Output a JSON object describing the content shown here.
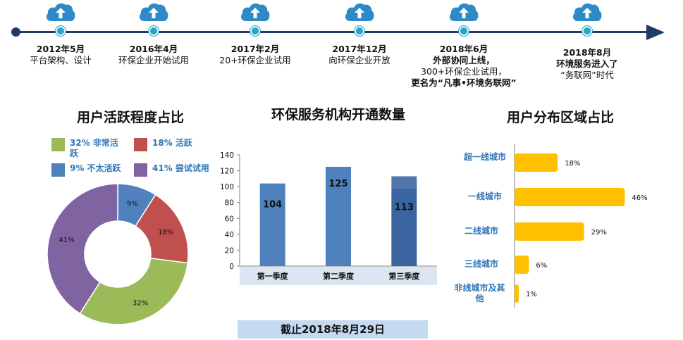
{
  "timeline": {
    "milestones": [
      {
        "date": "2012年5月",
        "desc": [
          "平台架构、设计"
        ]
      },
      {
        "date": "2016年4月",
        "desc": [
          "环保企业开始试用"
        ]
      },
      {
        "date": "2017年2月",
        "desc": [
          "20+环保企业试用"
        ]
      },
      {
        "date": "2017年12月",
        "desc": [
          "向环保企业开放"
        ]
      },
      {
        "date": "2018年6月",
        "desc": [
          "外部协同上线，",
          "300+环保企业试用，",
          "更名为“凡事•环境务联网”"
        ]
      },
      {
        "date": "2018年8月",
        "desc": [
          "环境服务进入了",
          "“务联网”时代"
        ]
      }
    ],
    "icon": "cloud-upload-icon",
    "colors": {
      "line": "#1f3b66",
      "node": "#29a3c6",
      "cloud": "#2e8ac7"
    }
  },
  "sections": {
    "activity_title": "用户活跃程度占比",
    "institutions_title": "环保服务机构开通数量",
    "region_title": "用户分布区域占比"
  },
  "cutoff_label": "截止2018年8月29日",
  "chart_data": [
    {
      "type": "pie",
      "donut": true,
      "title": "用户活跃程度占比",
      "slices": [
        {
          "legend": "9%  不太活跃",
          "slice_label": "9%",
          "value": 9,
          "color": "#4f81bd"
        },
        {
          "legend": "18% 活跃",
          "slice_label": "18%",
          "value": 18,
          "color": "#c0504d"
        },
        {
          "legend": "32% 非常活跃",
          "slice_label": "32%",
          "value": 32,
          "color": "#9bbb59"
        },
        {
          "legend": "41% 尝试试用",
          "slice_label": "41%",
          "value": 41,
          "color": "#8064a2"
        }
      ],
      "legend_order": [
        2,
        1,
        0,
        3
      ]
    },
    {
      "type": "bar",
      "title": "环保服务机构开通数量",
      "categories": [
        "第一季度",
        "第二季度",
        "第三季度"
      ],
      "values": [
        104,
        125,
        113
      ],
      "value_labels": [
        "104",
        "125",
        "113"
      ],
      "ylim": [
        0,
        140
      ],
      "yticks": [
        0,
        20,
        40,
        60,
        80,
        100,
        120,
        140
      ],
      "colors": [
        "#4f81bd",
        "#4f81bd",
        "#3a64a0"
      ],
      "grid": false
    },
    {
      "type": "bar",
      "orientation": "horizontal",
      "title": "用户分布区域占比",
      "categories": [
        "超一线城市",
        "一线城市",
        "二线城市",
        "三线城市",
        "非线城市及其他"
      ],
      "values": [
        18,
        46,
        29,
        6,
        1
      ],
      "value_labels": [
        "18%",
        "46%",
        "29%",
        "6%",
        "1%"
      ],
      "xlim": [
        0,
        50
      ],
      "color": "#ffc000"
    }
  ]
}
